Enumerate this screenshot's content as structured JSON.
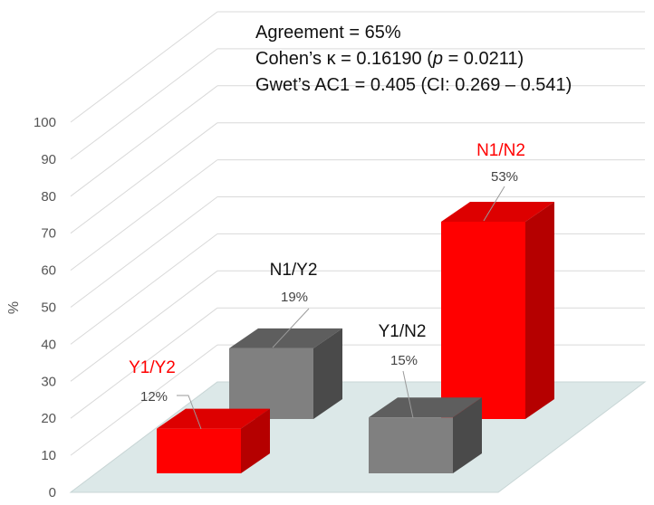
{
  "chart_data": {
    "type": "bar",
    "style": "3d",
    "ylabel": "%",
    "ylim": [
      0,
      100
    ],
    "yticks": [
      0,
      10,
      20,
      30,
      40,
      50,
      60,
      70,
      80,
      90,
      100
    ],
    "grid": true,
    "categories": [
      "Y1/Y2",
      "N1/Y2",
      "Y1/N2",
      "N1/N2"
    ],
    "values": [
      12,
      19,
      15,
      53
    ],
    "value_labels": [
      "12%",
      "19%",
      "15%",
      "53%"
    ],
    "colors": [
      "#ff0000",
      "#808080",
      "#808080",
      "#ff0000"
    ],
    "category_label_colors": [
      "#ff0000",
      "#111111",
      "#111111",
      "#ff0000"
    ],
    "annotations": [
      {
        "prefix": "Agreement = 65%",
        "italic": "",
        "suffix": ""
      },
      {
        "prefix": "Cohen’s κ = 0.16190 (",
        "italic": "p",
        "suffix": " = 0.0211)"
      },
      {
        "prefix": "Gwet’s AC1 = 0.405 (CI: 0.269 – 0.541)",
        "italic": "",
        "suffix": ""
      }
    ]
  }
}
